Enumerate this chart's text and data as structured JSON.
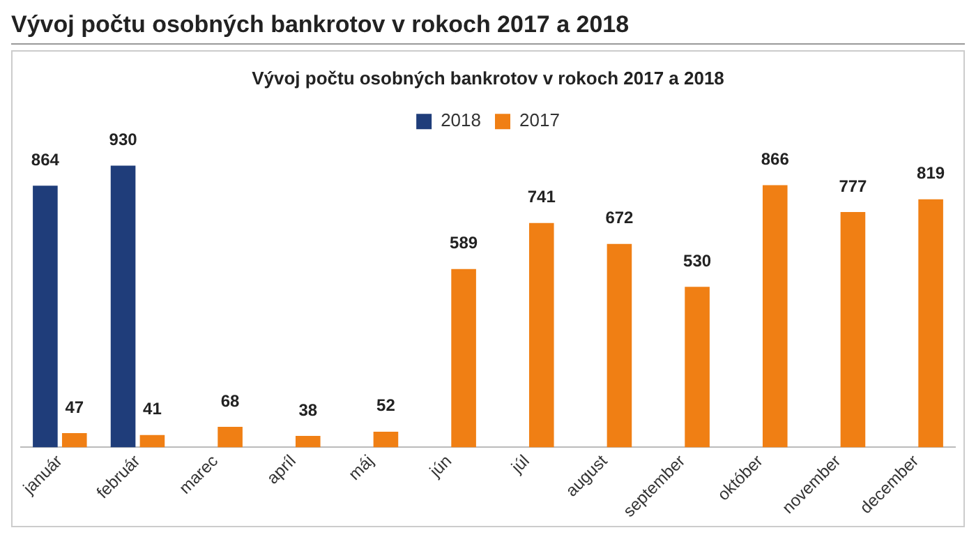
{
  "chart_data": {
    "type": "bar",
    "title": "Vývoj počtu osobných bankrotov v rokoch 2017 a 2018",
    "subtitle": "Vývoj počtu osobných bankrotov v rokoch 2017 a 2018",
    "categories": [
      "január",
      "február",
      "marec",
      "apríl",
      "máj",
      "jún",
      "júl",
      "august",
      "september",
      "október",
      "november",
      "december"
    ],
    "series": [
      {
        "name": "2018",
        "color": "#1f3d7a",
        "values": [
          864,
          930,
          null,
          null,
          null,
          null,
          null,
          null,
          null,
          null,
          null,
          null
        ]
      },
      {
        "name": "2017",
        "color": "#f07f14",
        "values": [
          47,
          41,
          68,
          38,
          52,
          589,
          741,
          672,
          530,
          866,
          777,
          819
        ]
      }
    ],
    "data_labels": true,
    "legend": "top",
    "grid": false
  }
}
